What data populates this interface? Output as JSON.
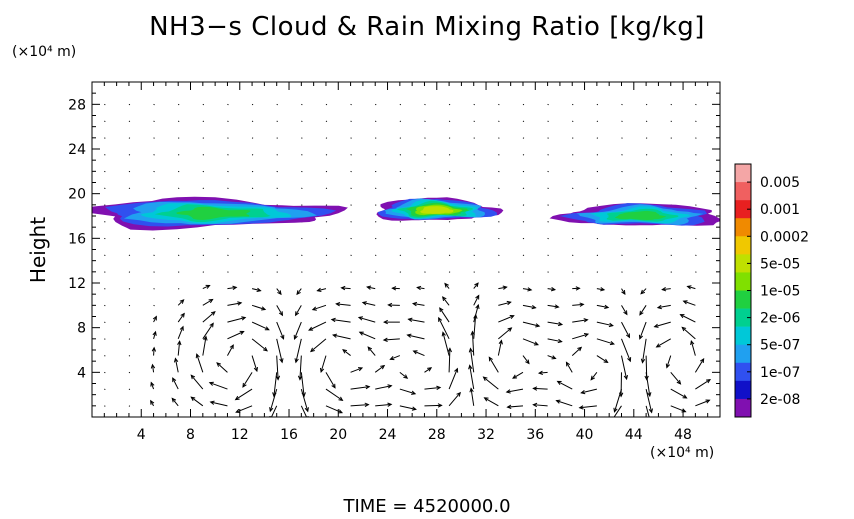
{
  "chart_data": {
    "type": "heatmap",
    "title": "NH3−s Cloud & Rain Mixing Ratio [kg/kg]",
    "xlabel": "",
    "ylabel": "Height",
    "x_unit": "(×10⁴ m)",
    "y_unit": "(×10⁴ m)",
    "xlim": [
      0,
      51
    ],
    "ylim": [
      0,
      30
    ],
    "x_ticks": [
      4,
      8,
      12,
      16,
      20,
      24,
      28,
      32,
      36,
      40,
      44,
      48
    ],
    "y_ticks": [
      4,
      8,
      12,
      16,
      20,
      24,
      28
    ],
    "colorbar": {
      "labels": [
        "0.005",
        "0.001",
        "0.0002",
        "5e-05",
        "1e-05",
        "2e-06",
        "5e-07",
        "1e-07",
        "2e-08"
      ],
      "colors": [
        "#f4a6a6",
        "#f06060",
        "#e82020",
        "#f08a00",
        "#f0c800",
        "#c0e000",
        "#80e000",
        "#20d040",
        "#00d090",
        "#00c8d8",
        "#20a0f0",
        "#3050f0",
        "#1010c8",
        "#8010b0"
      ]
    },
    "cloud_layers": [
      {
        "x_range": [
          0,
          20
        ],
        "height_range": [
          17,
          19.5
        ],
        "peak": "1e-05"
      },
      {
        "x_range": [
          23,
          33
        ],
        "height_range": [
          17.5,
          19.5
        ],
        "peak": "5e-05"
      },
      {
        "x_range": [
          38,
          51
        ],
        "height_range": [
          17,
          19
        ],
        "peak": "1e-05"
      }
    ],
    "vector_field": "wind vectors",
    "time_label": "TIME = 4520000.0"
  }
}
